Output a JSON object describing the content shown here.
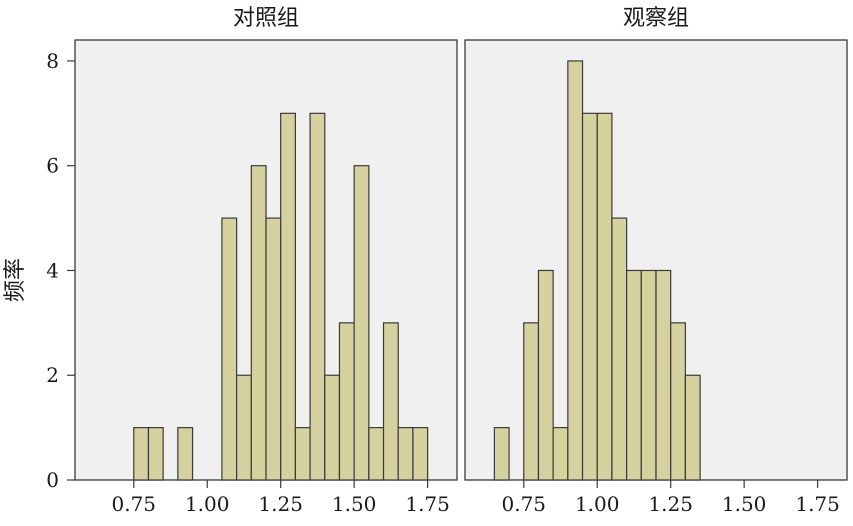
{
  "chart_data": [
    {
      "type": "bar",
      "title": "对照组",
      "ylabel": "频率",
      "xlim": [
        0.55,
        1.85
      ],
      "ylim": [
        0,
        8.4
      ],
      "yticks": [
        "0",
        "2",
        "4",
        "6",
        "8"
      ],
      "xticks": [
        "0.75",
        "1.00",
        "1.25",
        "1.50",
        "1.75"
      ],
      "bin_width": 0.05,
      "bins": [
        {
          "x0": 0.75,
          "x1": 0.8,
          "count": 1
        },
        {
          "x0": 0.8,
          "x1": 0.85,
          "count": 1
        },
        {
          "x0": 0.9,
          "x1": 0.95,
          "count": 1
        },
        {
          "x0": 1.05,
          "x1": 1.1,
          "count": 5
        },
        {
          "x0": 1.1,
          "x1": 1.15,
          "count": 2
        },
        {
          "x0": 1.15,
          "x1": 1.2,
          "count": 6
        },
        {
          "x0": 1.2,
          "x1": 1.25,
          "count": 5
        },
        {
          "x0": 1.25,
          "x1": 1.3,
          "count": 7
        },
        {
          "x0": 1.3,
          "x1": 1.35,
          "count": 1
        },
        {
          "x0": 1.35,
          "x1": 1.4,
          "count": 7
        },
        {
          "x0": 1.4,
          "x1": 1.45,
          "count": 2
        },
        {
          "x0": 1.45,
          "x1": 1.5,
          "count": 3
        },
        {
          "x0": 1.5,
          "x1": 1.55,
          "count": 6
        },
        {
          "x0": 1.55,
          "x1": 1.6,
          "count": 1
        },
        {
          "x0": 1.6,
          "x1": 1.65,
          "count": 3
        },
        {
          "x0": 1.65,
          "x1": 1.7,
          "count": 1
        },
        {
          "x0": 1.7,
          "x1": 1.75,
          "count": 1
        }
      ],
      "grid": false
    },
    {
      "type": "bar",
      "title": "观察组",
      "xlim": [
        0.55,
        1.85
      ],
      "ylim": [
        0,
        8.4
      ],
      "xticks": [
        "0.75",
        "1.00",
        "1.25",
        "1.50",
        "1.75"
      ],
      "bin_width": 0.05,
      "bins": [
        {
          "x0": 0.65,
          "x1": 0.7,
          "count": 1
        },
        {
          "x0": 0.75,
          "x1": 0.8,
          "count": 3
        },
        {
          "x0": 0.8,
          "x1": 0.85,
          "count": 4
        },
        {
          "x0": 0.85,
          "x1": 0.9,
          "count": 1
        },
        {
          "x0": 0.9,
          "x1": 0.95,
          "count": 8
        },
        {
          "x0": 0.95,
          "x1": 1.0,
          "count": 7
        },
        {
          "x0": 1.0,
          "x1": 1.05,
          "count": 7
        },
        {
          "x0": 1.05,
          "x1": 1.1,
          "count": 5
        },
        {
          "x0": 1.1,
          "x1": 1.15,
          "count": 4
        },
        {
          "x0": 1.15,
          "x1": 1.2,
          "count": 4
        },
        {
          "x0": 1.2,
          "x1": 1.25,
          "count": 4
        },
        {
          "x0": 1.25,
          "x1": 1.3,
          "count": 3
        },
        {
          "x0": 1.3,
          "x1": 1.35,
          "count": 2
        }
      ],
      "grid": false
    }
  ],
  "colors": {
    "bar_fill": "#d6d2a0",
    "bar_stroke": "#3a3a3a",
    "panel_background": "#f0f0f0"
  }
}
